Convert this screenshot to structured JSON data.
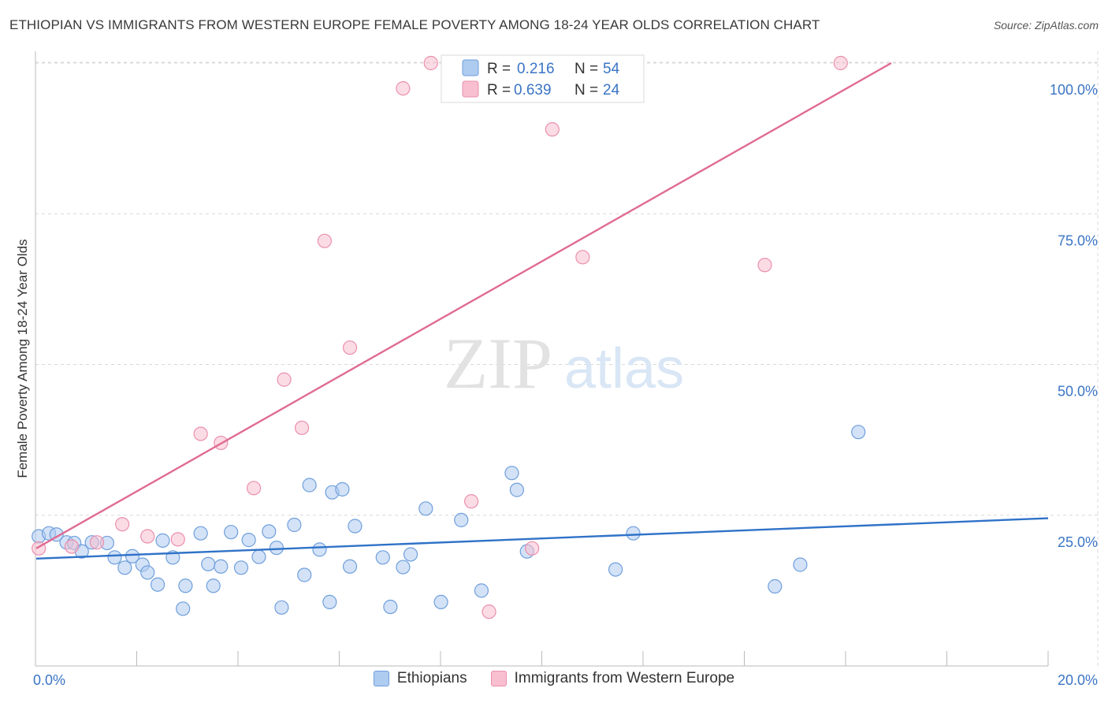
{
  "title": "ETHIOPIAN VS IMMIGRANTS FROM WESTERN EUROPE FEMALE POVERTY AMONG 18-24 YEAR OLDS CORRELATION CHART",
  "source": "Source: ZipAtlas.com",
  "watermark": {
    "zip": "ZIP",
    "atlas": "atlas"
  },
  "legend_stats": [
    {
      "r_label": "R =",
      "r_value": "0.216",
      "n_label": "N =",
      "n_value": "54"
    },
    {
      "r_label": "R =",
      "r_value": "0.639",
      "n_label": "N =",
      "n_value": "24"
    }
  ],
  "colors": {
    "blue_fill": "#aecbf0",
    "blue_stroke": "#6f9fdc",
    "blue_line": "#2f72c8",
    "pink_fill": "#f7bfd0",
    "pink_stroke": "#eb8fae",
    "pink_line": "#e06b93",
    "value_text": "#3a74c4",
    "grid": "#d8d8d8"
  },
  "chart_data": {
    "type": "scatter",
    "title": "ETHIOPIAN VS IMMIGRANTS FROM WESTERN EUROPE FEMALE POVERTY AMONG 18-24 YEAR OLDS CORRELATION CHART",
    "xlabel": "",
    "ylabel": "Female Poverty Among 18-24 Year Olds",
    "xlim": [
      0,
      20
    ],
    "ylim": [
      0,
      102
    ],
    "x_tick_labels": [
      "0.0%",
      "20.0%"
    ],
    "y_ticks": [
      25,
      50,
      75,
      100
    ],
    "y_tick_labels": [
      "25.0%",
      "50.0%",
      "75.0%",
      "100.0%"
    ],
    "grid": true,
    "legend_position": "top-center",
    "series": [
      {
        "name": "Ethiopians",
        "trend": {
          "x": [
            0,
            20
          ],
          "y": [
            17.8,
            24.5
          ]
        },
        "points": [
          [
            0.05,
            21.5
          ],
          [
            0.25,
            22.0
          ],
          [
            0.4,
            21.8
          ],
          [
            0.6,
            20.5
          ],
          [
            0.75,
            20.4
          ],
          [
            0.9,
            19.0
          ],
          [
            1.1,
            20.5
          ],
          [
            1.4,
            20.4
          ],
          [
            1.55,
            18.0
          ],
          [
            1.75,
            16.3
          ],
          [
            1.9,
            18.2
          ],
          [
            2.1,
            16.8
          ],
          [
            2.2,
            15.5
          ],
          [
            2.4,
            13.5
          ],
          [
            2.5,
            20.8
          ],
          [
            2.7,
            18.0
          ],
          [
            2.9,
            9.5
          ],
          [
            2.95,
            13.3
          ],
          [
            3.25,
            22.0
          ],
          [
            3.4,
            16.9
          ],
          [
            3.5,
            13.3
          ],
          [
            3.65,
            16.5
          ],
          [
            3.85,
            22.2
          ],
          [
            4.05,
            16.3
          ],
          [
            4.2,
            20.9
          ],
          [
            4.4,
            18.1
          ],
          [
            4.6,
            22.3
          ],
          [
            4.75,
            19.6
          ],
          [
            4.85,
            9.7
          ],
          [
            5.1,
            23.4
          ],
          [
            5.3,
            15.1
          ],
          [
            5.4,
            30.0
          ],
          [
            5.6,
            19.3
          ],
          [
            5.8,
            10.6
          ],
          [
            5.85,
            28.8
          ],
          [
            6.05,
            29.3
          ],
          [
            6.2,
            16.5
          ],
          [
            6.3,
            23.2
          ],
          [
            6.85,
            18.0
          ],
          [
            7.0,
            9.8
          ],
          [
            7.25,
            16.4
          ],
          [
            7.4,
            18.5
          ],
          [
            7.7,
            26.1
          ],
          [
            8.0,
            10.6
          ],
          [
            8.4,
            24.2
          ],
          [
            8.8,
            12.5
          ],
          [
            9.4,
            32.0
          ],
          [
            9.5,
            29.2
          ],
          [
            9.7,
            19.0
          ],
          [
            11.45,
            16.0
          ],
          [
            11.8,
            22.0
          ],
          [
            14.6,
            13.2
          ],
          [
            15.1,
            16.8
          ],
          [
            16.25,
            38.8
          ]
        ]
      },
      {
        "name": "Immigrants from Western Europe",
        "trend": {
          "x": [
            0,
            16.9
          ],
          "y": [
            19.5,
            100
          ]
        },
        "points": [
          [
            0.05,
            19.5
          ],
          [
            0.7,
            19.8
          ],
          [
            1.2,
            20.5
          ],
          [
            1.7,
            23.5
          ],
          [
            2.2,
            21.5
          ],
          [
            2.8,
            21.0
          ],
          [
            3.25,
            38.5
          ],
          [
            3.65,
            37.0
          ],
          [
            4.3,
            29.5
          ],
          [
            4.9,
            47.5
          ],
          [
            5.25,
            39.5
          ],
          [
            5.7,
            70.5
          ],
          [
            6.2,
            52.8
          ],
          [
            7.25,
            95.8
          ],
          [
            7.8,
            100
          ],
          [
            8.3,
            100
          ],
          [
            8.6,
            27.3
          ],
          [
            8.95,
            9.0
          ],
          [
            9.8,
            19.5
          ],
          [
            10.2,
            89.0
          ],
          [
            10.8,
            67.8
          ],
          [
            11.8,
            100
          ],
          [
            14.4,
            66.5
          ],
          [
            15.9,
            100
          ]
        ]
      }
    ]
  }
}
